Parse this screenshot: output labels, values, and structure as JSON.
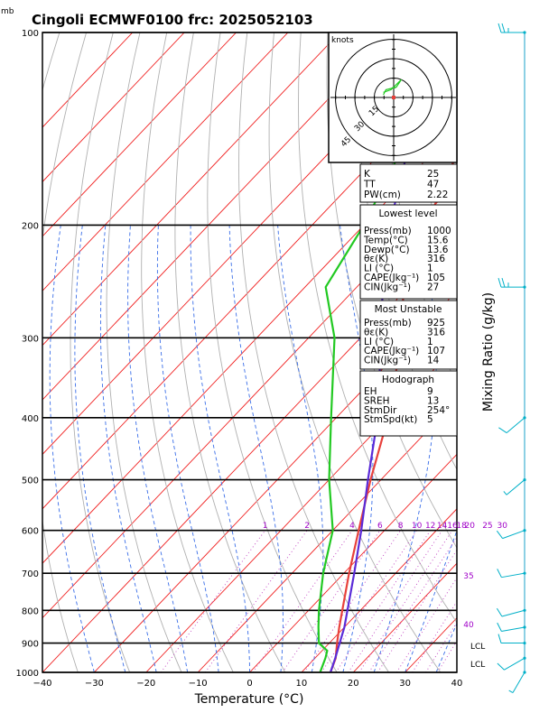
{
  "header": {
    "unit_top": "mb",
    "title": "Cingoli ECMWF0100  frc: 2025052103"
  },
  "axes": {
    "xlabel": "Temperature  (°C)",
    "ylabel_right": "Mixing Ratio  (g/kg)",
    "xticks": [
      "−40",
      "−30",
      "−20",
      "−10",
      "0",
      "10",
      "20",
      "30",
      "40"
    ],
    "xlim": [
      -40,
      40
    ],
    "pressure_levels": [
      100,
      200,
      300,
      400,
      500,
      600,
      700,
      800,
      900,
      1000
    ],
    "pressure_labels": [
      "100",
      "200",
      "300",
      "400",
      "500",
      "600",
      "700",
      "800",
      "900",
      "1000"
    ]
  },
  "mixing_ratio_labels": [
    "1",
    "2",
    "4",
    "6",
    "8",
    "10",
    "12",
    "14",
    "16",
    "18",
    "20",
    "25",
    "30",
    "35",
    "40"
  ],
  "lcl_labels": [
    "LCL",
    "LCL"
  ],
  "hodograph": {
    "unit": "knots",
    "rings": [
      "15",
      "30",
      "45"
    ]
  },
  "panel_kttpw": [
    {
      "k": "K",
      "v": "25"
    },
    {
      "k": "TT",
      "v": "47"
    },
    {
      "k": "PW(cm)",
      "v": "2.22"
    }
  ],
  "panel_lowest": {
    "title": "Lowest level",
    "rows": [
      {
        "k": "Press(mb)",
        "v": "1000"
      },
      {
        "k": "Temp(°C)",
        "v": "15.6"
      },
      {
        "k": "Dewp(°C)",
        "v": "13.6"
      },
      {
        "k": "θε(K)",
        "v": "316"
      },
      {
        "k": "LI (°C)",
        "v": "1"
      },
      {
        "k": "CAPE(Jkg⁻¹)",
        "v": "105"
      },
      {
        "k": "CIN(Jkg⁻¹)",
        "v": "27"
      }
    ]
  },
  "panel_unstable": {
    "title": "Most Unstable",
    "rows": [
      {
        "k": "Press(mb)",
        "v": "925"
      },
      {
        "k": "θε(K)",
        "v": "316"
      },
      {
        "k": "LI (°C)",
        "v": "1"
      },
      {
        "k": "CAPE(Jkg⁻¹)",
        "v": "107"
      },
      {
        "k": "CIN(Jkg⁻¹)",
        "v": "14"
      }
    ]
  },
  "panel_hodo": {
    "title": "Hodograph",
    "rows": [
      {
        "k": "EH",
        "v": "9"
      },
      {
        "k": "SREH",
        "v": "13"
      },
      {
        "k": "StmDir",
        "v": "254°"
      },
      {
        "k": "StmSpd(kt)",
        "v": "5"
      }
    ]
  },
  "colors": {
    "temperature": "#e8413c",
    "dewpoint": "#22c922",
    "parcel": "#5a2bd8",
    "isotherm": "#f02020",
    "dry_adiabat": "#b0b0b0",
    "moist_adiabat": "#3a6ee8",
    "mixing_ratio": "#c040c0",
    "wind": "#00b0c8"
  },
  "chart_data": {
    "type": "line",
    "x_units": "°C",
    "y_units": "mb",
    "series": [
      {
        "id": "temperature",
        "points": [
          [
            1000,
            15.6
          ],
          [
            950,
            14
          ],
          [
            900,
            11.5
          ],
          [
            850,
            9
          ],
          [
            800,
            6.5
          ],
          [
            700,
            1
          ],
          [
            600,
            -5
          ],
          [
            500,
            -12
          ],
          [
            400,
            -20
          ],
          [
            300,
            -32
          ],
          [
            250,
            -41
          ],
          [
            200,
            -48
          ],
          [
            150,
            -56
          ],
          [
            100,
            -60
          ]
        ]
      },
      {
        "id": "dewpoint",
        "points": [
          [
            1000,
            13.6
          ],
          [
            950,
            12
          ],
          [
            925,
            11
          ],
          [
            900,
            8
          ],
          [
            850,
            5
          ],
          [
            800,
            2
          ],
          [
            700,
            -4
          ],
          [
            600,
            -10
          ],
          [
            500,
            -20
          ],
          [
            400,
            -31
          ],
          [
            300,
            -45
          ],
          [
            250,
            -56
          ],
          [
            200,
            -60
          ],
          [
            150,
            -67
          ],
          [
            100,
            -75
          ]
        ]
      },
      {
        "id": "parcel",
        "points": [
          [
            1000,
            15.6
          ],
          [
            950,
            13.9
          ],
          [
            900,
            12
          ],
          [
            850,
            10
          ],
          [
            800,
            7.5
          ],
          [
            700,
            2
          ],
          [
            600,
            -4.5
          ],
          [
            500,
            -12.5
          ],
          [
            400,
            -22
          ],
          [
            300,
            -36
          ],
          [
            250,
            -45
          ],
          [
            200,
            -55
          ],
          [
            150,
            -66
          ],
          [
            100,
            -78
          ]
        ]
      }
    ],
    "hodograph_points": [
      [
        -4,
        1
      ],
      [
        -3,
        3
      ],
      [
        1,
        4
      ],
      [
        3,
        7
      ],
      [
        -1,
        3
      ],
      [
        -4,
        2
      ]
    ],
    "wind_barbs": [
      {
        "p": 100,
        "dir": 270,
        "spd": 25
      },
      {
        "p": 250,
        "dir": 270,
        "spd": 25
      },
      {
        "p": 400,
        "dir": 230,
        "spd": 10
      },
      {
        "p": 500,
        "dir": 230,
        "spd": 5
      },
      {
        "p": 600,
        "dir": 250,
        "spd": 10
      },
      {
        "p": 700,
        "dir": 260,
        "spd": 10
      },
      {
        "p": 800,
        "dir": 255,
        "spd": 10
      },
      {
        "p": 850,
        "dir": 260,
        "spd": 10
      },
      {
        "p": 900,
        "dir": 270,
        "spd": 10
      },
      {
        "p": 950,
        "dir": 240,
        "spd": 10
      },
      {
        "p": 1000,
        "dir": 210,
        "spd": 5
      }
    ]
  }
}
